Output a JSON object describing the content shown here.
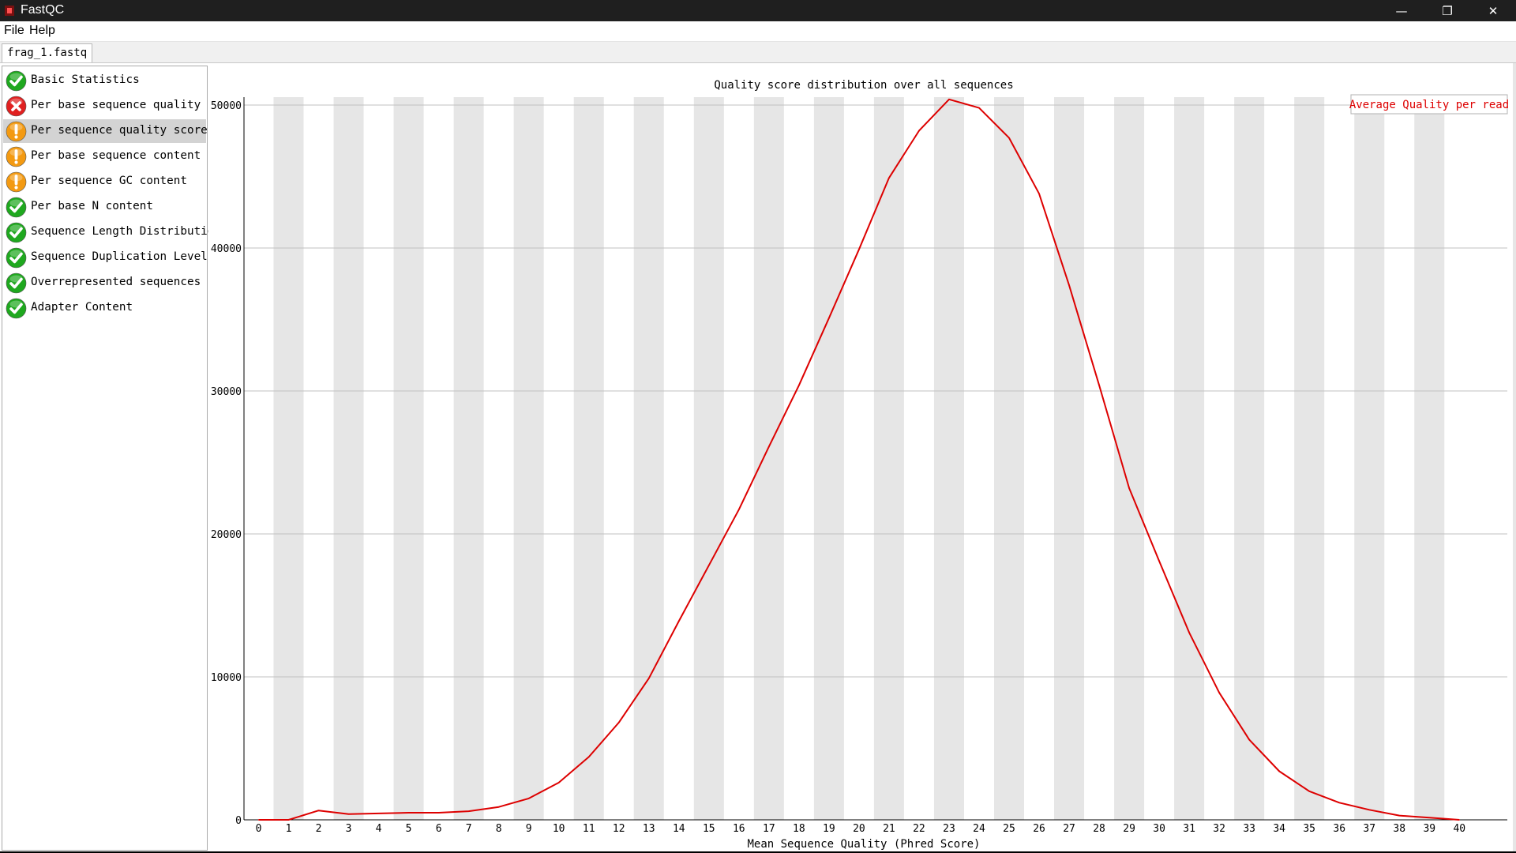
{
  "window": {
    "title": "FastQC",
    "minimize_glyph": "—",
    "restore_glyph": "❐",
    "close_glyph": "✕"
  },
  "menu": {
    "file": "File",
    "help": "Help"
  },
  "tab": {
    "label": "frag_1.fastq"
  },
  "modules": [
    {
      "label": "Basic Statistics",
      "status": "pass",
      "icon": "pass-check-icon"
    },
    {
      "label": "Per base sequence quality",
      "status": "fail",
      "icon": "fail-cross-icon"
    },
    {
      "label": "Per sequence quality scores",
      "status": "warn",
      "icon": "warn-exclamation-icon",
      "selected": true
    },
    {
      "label": "Per base sequence content",
      "status": "warn",
      "icon": "warn-exclamation-icon"
    },
    {
      "label": "Per sequence GC content",
      "status": "warn",
      "icon": "warn-exclamation-icon"
    },
    {
      "label": "Per base N content",
      "status": "pass",
      "icon": "pass-check-icon"
    },
    {
      "label": "Sequence Length Distribution",
      "status": "pass",
      "icon": "pass-check-icon"
    },
    {
      "label": "Sequence Duplication Levels",
      "status": "pass",
      "icon": "pass-check-icon"
    },
    {
      "label": "Overrepresented sequences",
      "status": "pass",
      "icon": "pass-check-icon"
    },
    {
      "label": "Adapter Content",
      "status": "pass",
      "icon": "pass-check-icon"
    }
  ],
  "colors": {
    "pass": "#1fa81f",
    "fail": "#e02020",
    "warn": "#f39a12",
    "line": "#dd0000",
    "stripe": "#e6e6e6",
    "grid": "#c0c0c0"
  },
  "chart_data": {
    "type": "line",
    "title": "Quality score distribution over all sequences",
    "xlabel": "Mean Sequence Quality (Phred Score)",
    "ylabel": "",
    "legend": "top-right",
    "grid": true,
    "xlim": [
      0,
      40
    ],
    "ylim": [
      0,
      50000
    ],
    "yticks": [
      0,
      10000,
      20000,
      30000,
      40000,
      50000
    ],
    "x": [
      0,
      1,
      2,
      3,
      4,
      5,
      6,
      7,
      8,
      9,
      10,
      11,
      12,
      13,
      14,
      15,
      16,
      17,
      18,
      19,
      20,
      21,
      22,
      23,
      24,
      25,
      26,
      27,
      28,
      29,
      30,
      31,
      32,
      33,
      34,
      35,
      36,
      37,
      38,
      39,
      40
    ],
    "series": [
      {
        "name": "Average Quality per read",
        "values": [
          0,
          0,
          650,
          400,
          450,
          500,
          500,
          600,
          900,
          1500,
          2600,
          4400,
          6800,
          9900,
          13900,
          17800,
          21700,
          26100,
          30400,
          35100,
          39900,
          44900,
          48200,
          50400,
          49800,
          47700,
          43800,
          37400,
          30400,
          23200,
          18100,
          13100,
          8900,
          5600,
          3400,
          2000,
          1200,
          700,
          300,
          150,
          0
        ]
      }
    ]
  }
}
